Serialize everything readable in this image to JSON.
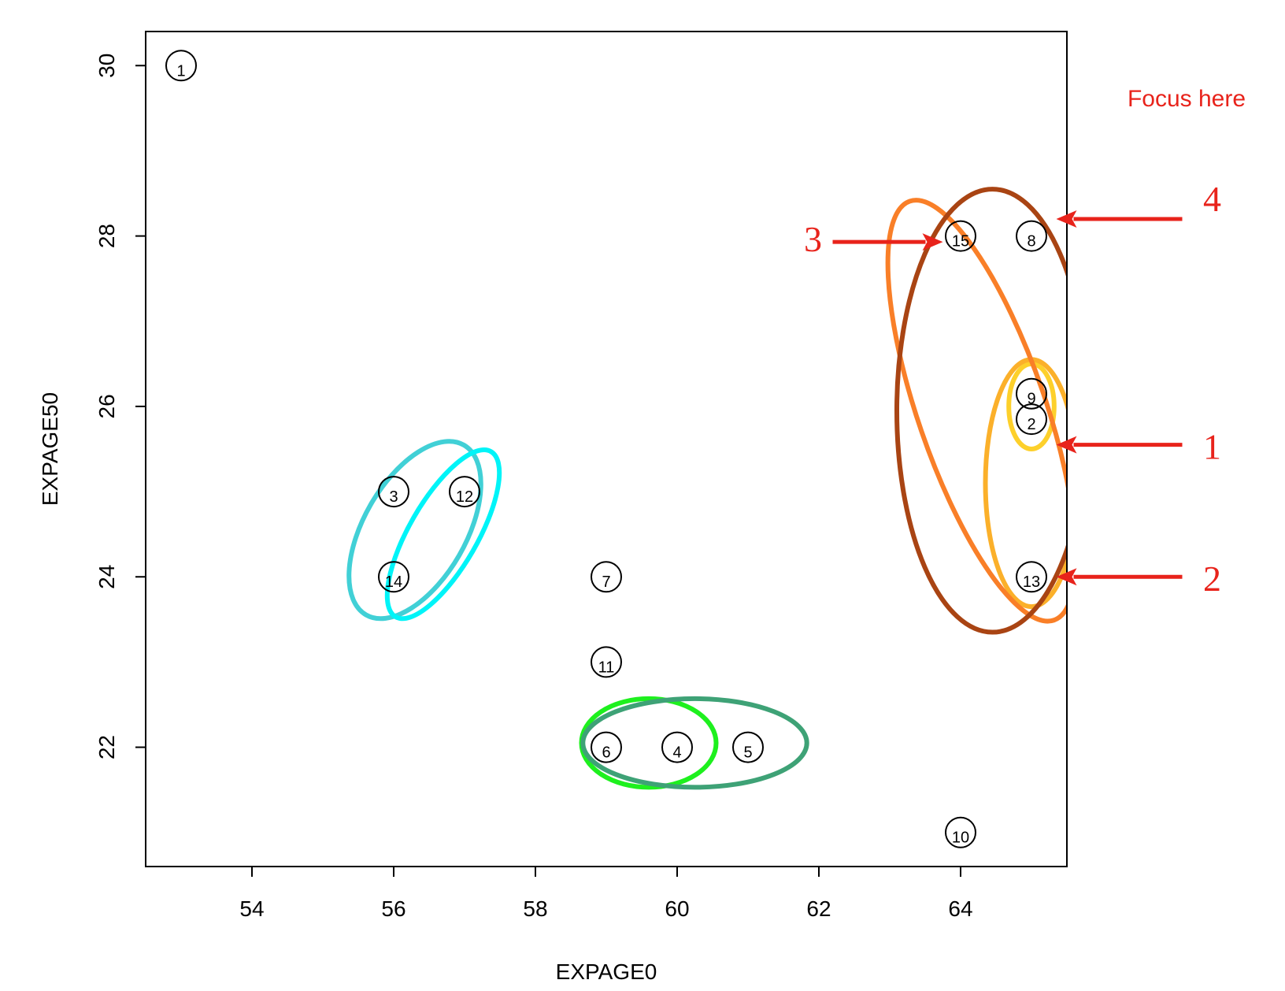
{
  "chart_data": {
    "type": "scatter",
    "xlabel": "EXPAGE0",
    "ylabel": "EXPAGE50",
    "xlim": [
      52.5,
      65.5
    ],
    "ylim": [
      20.6,
      30.4
    ],
    "xticks": [
      54,
      56,
      58,
      60,
      62,
      64
    ],
    "yticks": [
      22,
      24,
      26,
      28,
      30
    ],
    "points": [
      {
        "id": "1",
        "x": 53,
        "y": 30
      },
      {
        "id": "2",
        "x": 65,
        "y": 25.85
      },
      {
        "id": "3",
        "x": 56,
        "y": 25
      },
      {
        "id": "4",
        "x": 60,
        "y": 22
      },
      {
        "id": "5",
        "x": 61,
        "y": 22
      },
      {
        "id": "6",
        "x": 59,
        "y": 22
      },
      {
        "id": "7",
        "x": 59,
        "y": 24
      },
      {
        "id": "8",
        "x": 65,
        "y": 28
      },
      {
        "id": "9",
        "x": 65,
        "y": 26.15
      },
      {
        "id": "10",
        "x": 64,
        "y": 21
      },
      {
        "id": "11",
        "x": 59,
        "y": 23
      },
      {
        "id": "12",
        "x": 57,
        "y": 25
      },
      {
        "id": "13",
        "x": 65,
        "y": 24
      },
      {
        "id": "14",
        "x": 56,
        "y": 24
      },
      {
        "id": "15",
        "x": 64,
        "y": 28
      }
    ],
    "ellipses": [
      {
        "color": "#fdd02b",
        "cx": 65,
        "cy": 26,
        "rx": 0.32,
        "ry": 0.5,
        "angle": 0
      },
      {
        "color": "#fbb02a",
        "cx": 65,
        "cy": 25.1,
        "rx": 0.65,
        "ry": 1.45,
        "angle": 0
      },
      {
        "color": "#f97f28",
        "cx": 64.3,
        "cy": 25.95,
        "rx": 0.9,
        "ry": 2.6,
        "angle": -19
      },
      {
        "color": "#a94413",
        "cx": 64.45,
        "cy": 25.95,
        "rx": 1.35,
        "ry": 2.6,
        "angle": 0
      },
      {
        "color": "#41d0d6",
        "cx": 56.3,
        "cy": 24.55,
        "rx": 0.72,
        "ry": 1.15,
        "angle": 30
      },
      {
        "color": "#00f4f8",
        "cx": 56.7,
        "cy": 24.5,
        "rx": 0.48,
        "ry": 1.12,
        "angle": 30
      },
      {
        "color": "#1ef01e",
        "cx": 59.6,
        "cy": 22.05,
        "rx": 0.95,
        "ry": 0.52,
        "angle": 0
      },
      {
        "color": "#3ea276",
        "cx": 60.25,
        "cy": 22.05,
        "rx": 1.58,
        "ry": 0.52,
        "angle": 0
      }
    ],
    "annotations": [
      {
        "label": "1",
        "tip": [
          65.35,
          25.55
        ]
      },
      {
        "label": "2",
        "tip": [
          65.35,
          24.0
        ]
      },
      {
        "label": "3",
        "tip": [
          63.75,
          27.93
        ]
      },
      {
        "label": "4",
        "tip": [
          65.35,
          28.2
        ]
      }
    ],
    "note": "Focus here",
    "colors": {
      "annotation": "#e8231b",
      "axis": "#000000"
    }
  }
}
